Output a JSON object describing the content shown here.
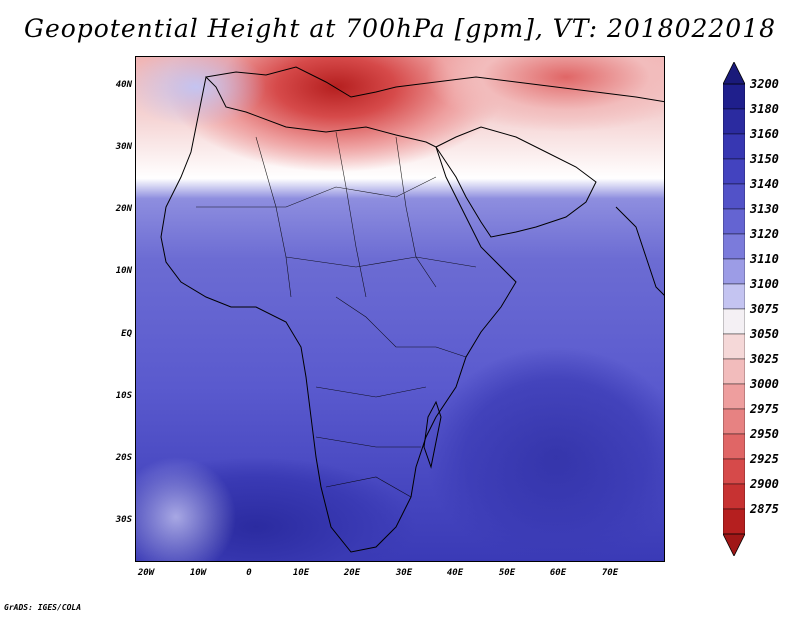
{
  "title": "Geopotential Height at 700hPa [gpm], VT: 2018022018",
  "credit": "GrADS: IGES/COLA",
  "lat_labels": [
    "40N",
    "30N",
    "20N",
    "10N",
    "EQ",
    "10S",
    "20S",
    "30S"
  ],
  "lon_labels": [
    "20W",
    "10W",
    "0",
    "10E",
    "20E",
    "30E",
    "40E",
    "50E",
    "60E",
    "70E"
  ],
  "colorbar": {
    "levels": [
      {
        "label": "3200",
        "color": "#1f1f8c"
      },
      {
        "label": "3180",
        "color": "#2b2ba0"
      },
      {
        "label": "3160",
        "color": "#3737b2"
      },
      {
        "label": "3150",
        "color": "#4343bf"
      },
      {
        "label": "3140",
        "color": "#5252c8"
      },
      {
        "label": "3130",
        "color": "#6464d2"
      },
      {
        "label": "3120",
        "color": "#7b7bdb"
      },
      {
        "label": "3110",
        "color": "#9c9ce6"
      },
      {
        "label": "3100",
        "color": "#c4c4f1"
      },
      {
        "label": "3075",
        "color": "#f4f0f4"
      },
      {
        "label": "3050",
        "color": "#f5d8d8"
      },
      {
        "label": "3025",
        "color": "#f2bcbc"
      },
      {
        "label": "3000",
        "color": "#ee9e9e"
      },
      {
        "label": "2975",
        "color": "#e78282"
      },
      {
        "label": "2950",
        "color": "#e06666"
      },
      {
        "label": "2925",
        "color": "#d64a4a"
      },
      {
        "label": "2900",
        "color": "#c73232"
      },
      {
        "label": "2875",
        "color": "#b51f1f"
      }
    ],
    "top_arrow_color": "#1a1a7a",
    "bottom_arrow_color": "#a01717"
  }
}
